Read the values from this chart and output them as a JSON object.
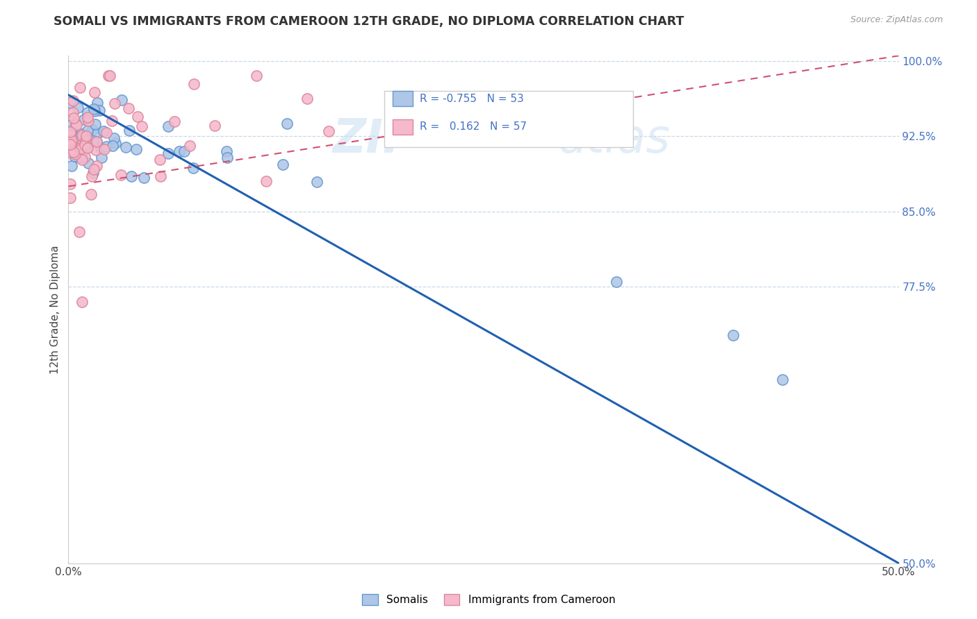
{
  "title": "SOMALI VS IMMIGRANTS FROM CAMEROON 12TH GRADE, NO DIPLOMA CORRELATION CHART",
  "source": "Source: ZipAtlas.com",
  "ylabel": "12th Grade, No Diploma",
  "xlim": [
    0.0,
    0.5
  ],
  "ylim": [
    0.5,
    1.005
  ],
  "somali_fill": "#aec6e8",
  "somali_edge": "#6699cc",
  "cameroon_fill": "#f5b8cc",
  "cameroon_edge": "#dd8899",
  "somali_line_color": "#2060b0",
  "cameroon_line_color": "#d05070",
  "R_somali": -0.755,
  "N_somali": 53,
  "R_cameroon": 0.162,
  "N_cameroon": 57,
  "bg_color": "#ffffff",
  "grid_color": "#c8d8e8",
  "watermark_zip": "ZIP",
  "watermark_atlas": "atlas",
  "ytick_vals": [
    0.5,
    0.775,
    0.85,
    0.925,
    1.0
  ],
  "ytick_labels": [
    "50.0%",
    "77.5%",
    "85.0%",
    "92.5%",
    "100.0%"
  ],
  "xtick_vals": [
    0.0,
    0.1,
    0.2,
    0.3,
    0.4,
    0.5
  ],
  "xtick_labels": [
    "0.0%",
    "",
    "",
    "",
    "",
    "50.0%"
  ],
  "somali_line_x0": 0.0,
  "somali_line_y0": 0.966,
  "somali_line_x1": 0.5,
  "somali_line_y1": 0.5,
  "cameroon_line_x0": 0.0,
  "cameroon_line_y0": 0.875,
  "cameroon_line_x1": 0.5,
  "cameroon_line_y1": 1.005
}
